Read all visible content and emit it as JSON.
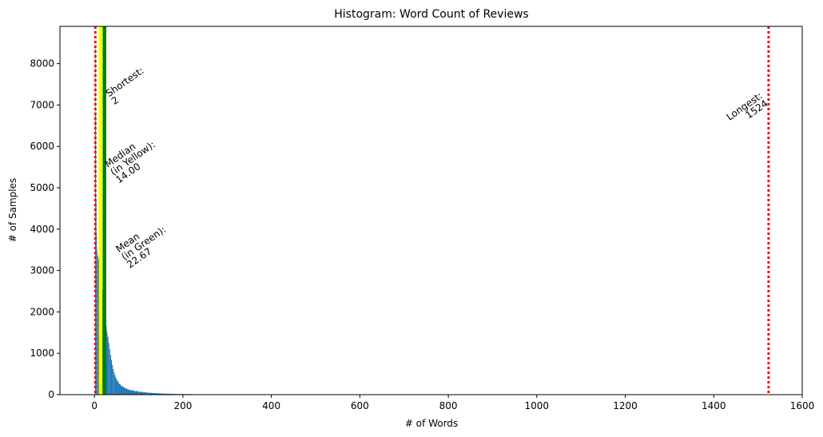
{
  "chart_data": {
    "type": "bar",
    "title": "Histogram: Word Count of Reviews",
    "xlabel": "# of Words",
    "ylabel": "# of Samples",
    "xlim": [
      -78,
      1600
    ],
    "ylim": [
      0,
      8900
    ],
    "xticks": [
      0,
      200,
      400,
      600,
      800,
      1000,
      1200,
      1400,
      1600
    ],
    "yticks": [
      0,
      1000,
      2000,
      3000,
      4000,
      5000,
      6000,
      7000,
      8000
    ],
    "bar_color": "#1f77b4",
    "bins": [
      {
        "x": 2,
        "count": 8400
      },
      {
        "x": 3,
        "count": 6800
      },
      {
        "x": 4,
        "count": 4700
      },
      {
        "x": 5,
        "count": 3900
      },
      {
        "x": 6,
        "count": 3500
      },
      {
        "x": 7,
        "count": 3400
      },
      {
        "x": 8,
        "count": 3350
      },
      {
        "x": 9,
        "count": 3300
      },
      {
        "x": 10,
        "count": 3250
      },
      {
        "x": 11,
        "count": 3200
      },
      {
        "x": 12,
        "count": 3100
      },
      {
        "x": 13,
        "count": 3000
      },
      {
        "x": 14,
        "count": 2900
      },
      {
        "x": 15,
        "count": 2800
      },
      {
        "x": 16,
        "count": 2700
      },
      {
        "x": 17,
        "count": 2620
      },
      {
        "x": 18,
        "count": 2540
      },
      {
        "x": 19,
        "count": 2460
      },
      {
        "x": 20,
        "count": 2380
      },
      {
        "x": 21,
        "count": 2300
      },
      {
        "x": 22,
        "count": 2220
      },
      {
        "x": 23,
        "count": 2320
      },
      {
        "x": 24,
        "count": 2060
      },
      {
        "x": 25,
        "count": 1980
      },
      {
        "x": 26,
        "count": 1800
      },
      {
        "x": 27,
        "count": 1650
      },
      {
        "x": 28,
        "count": 1560
      },
      {
        "x": 29,
        "count": 1480
      },
      {
        "x": 30,
        "count": 1400
      },
      {
        "x": 32,
        "count": 1250
      },
      {
        "x": 34,
        "count": 1100
      },
      {
        "x": 36,
        "count": 960
      },
      {
        "x": 38,
        "count": 840
      },
      {
        "x": 40,
        "count": 720
      },
      {
        "x": 42,
        "count": 620
      },
      {
        "x": 44,
        "count": 540
      },
      {
        "x": 46,
        "count": 470
      },
      {
        "x": 48,
        "count": 410
      },
      {
        "x": 50,
        "count": 355
      },
      {
        "x": 53,
        "count": 300
      },
      {
        "x": 56,
        "count": 255
      },
      {
        "x": 60,
        "count": 210
      },
      {
        "x": 65,
        "count": 175
      },
      {
        "x": 70,
        "count": 145
      },
      {
        "x": 75,
        "count": 125
      },
      {
        "x": 80,
        "count": 105
      },
      {
        "x": 90,
        "count": 85
      },
      {
        "x": 100,
        "count": 68
      },
      {
        "x": 110,
        "count": 55
      },
      {
        "x": 120,
        "count": 45
      },
      {
        "x": 130,
        "count": 38
      },
      {
        "x": 140,
        "count": 32
      },
      {
        "x": 150,
        "count": 27
      },
      {
        "x": 160,
        "count": 23
      },
      {
        "x": 170,
        "count": 20
      },
      {
        "x": 180,
        "count": 17
      },
      {
        "x": 190,
        "count": 15
      },
      {
        "x": 200,
        "count": 14
      },
      {
        "x": 210,
        "count": 12
      },
      {
        "x": 220,
        "count": 10
      },
      {
        "x": 230,
        "count": 9
      },
      {
        "x": 240,
        "count": 8
      },
      {
        "x": 250,
        "count": 7
      },
      {
        "x": 260,
        "count": 6
      }
    ],
    "reference_lines": [
      {
        "name": "shortest-line",
        "x": 2,
        "color": "#ff0000",
        "style": "dotted"
      },
      {
        "name": "median-line",
        "x": 14,
        "color": "#ffff00",
        "style": "solid"
      },
      {
        "name": "mean-line",
        "x": 22.67,
        "color": "#008000",
        "style": "solid"
      },
      {
        "name": "longest-line",
        "x": 1524,
        "color": "#ff0000",
        "style": "dotted"
      }
    ],
    "annotations": [
      {
        "name": "shortest-annotation",
        "lines": [
          "Shortest:",
          "2"
        ],
        "x": 45,
        "y": 7000,
        "align": "start"
      },
      {
        "name": "median-annotation",
        "lines": [
          "Median",
          "(in Yellow):",
          "14.00"
        ],
        "x": 55,
        "y": 5100,
        "align": "start"
      },
      {
        "name": "mean-annotation",
        "lines": [
          "Mean",
          "(in Green):",
          "22.67"
        ],
        "x": 80,
        "y": 3050,
        "align": "start"
      },
      {
        "name": "longest-annotation",
        "lines": [
          "Longest:",
          "1524"
        ],
        "x": 1524,
        "y": 7000,
        "align": "end"
      }
    ]
  }
}
